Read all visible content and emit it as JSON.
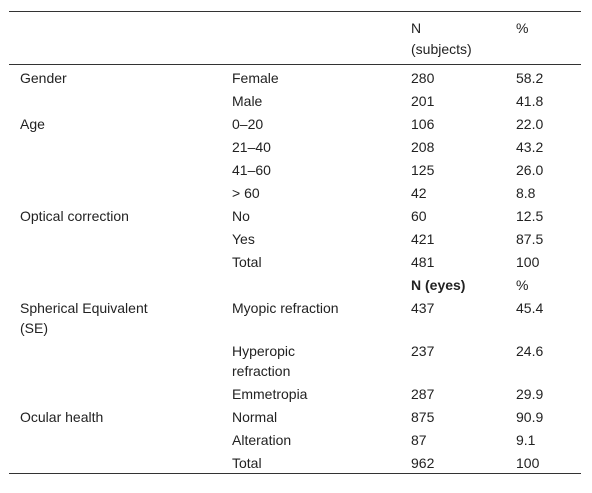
{
  "table": {
    "header": [
      null,
      null,
      "N (subjects)",
      "%"
    ],
    "section1": [
      [
        "Gender",
        "Female",
        "280",
        "58.2"
      ],
      [
        null,
        "Male",
        "201",
        "41.8"
      ],
      [
        "Age",
        "0–20",
        "106",
        "22.0"
      ],
      [
        null,
        "21–40",
        "208",
        "43.2"
      ],
      [
        null,
        "41–60",
        "125",
        "26.0"
      ],
      [
        null,
        "> 60",
        "42",
        "8.8"
      ],
      [
        "Optical correction",
        "No",
        "60",
        "12.5"
      ],
      [
        null,
        "Yes",
        "421",
        "87.5"
      ],
      [
        null,
        "Total",
        "481",
        "100"
      ]
    ],
    "subheader": [
      null,
      null,
      "N (eyes)",
      "%"
    ],
    "section2": [
      [
        "Spherical Equivalent (SE)",
        "Myopic refraction",
        "437",
        "45.4"
      ],
      [
        null,
        "Hyperopic refraction",
        "237",
        "24.6"
      ],
      [
        null,
        "Emmetropia",
        "287",
        "29.9"
      ],
      [
        "Ocular health",
        "Normal",
        "875",
        "90.9"
      ],
      [
        null,
        "Alteration",
        "87",
        "9.1"
      ],
      [
        null,
        "Total",
        "962",
        "100"
      ]
    ]
  }
}
